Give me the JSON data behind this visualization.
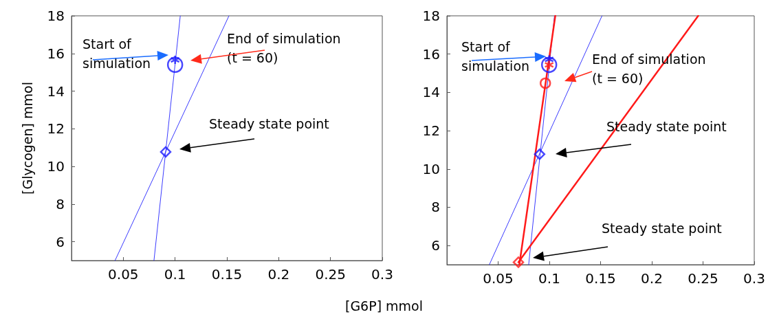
{
  "chart_data": [
    {
      "type": "line",
      "xlabel": "[G6P] mmol",
      "ylabel": "[Glycogen] mmol",
      "xlim": [
        0,
        0.3
      ],
      "ylim": [
        5,
        18
      ],
      "xticks": [
        0.05,
        0.1,
        0.15,
        0.2,
        0.25,
        0.3
      ],
      "yticks": [
        6,
        8,
        10,
        12,
        14,
        16,
        18
      ],
      "grid": false,
      "series": [
        {
          "color": "#3b3bff",
          "x": [
            0.0796,
            0.105
          ],
          "values": [
            5,
            18
          ]
        },
        {
          "color": "#3b3bff",
          "x": [
            0.042,
            0.152
          ],
          "values": [
            5,
            18
          ]
        },
        {
          "type": "scatter",
          "marker": "cross",
          "color": "#1a1aff",
          "x": [
            0.1
          ],
          "values": [
            15.66
          ]
        },
        {
          "type": "scatter",
          "marker": "circle",
          "color": "#1a1aff",
          "x": [
            0.1
          ],
          "values": [
            15.4
          ]
        },
        {
          "type": "scatter",
          "marker": "diamond",
          "color": "#1a1aff",
          "x": [
            0.0909
          ],
          "values": [
            10.77
          ]
        }
      ],
      "annotations": [
        "Start of\nsimulation",
        "End of simulation\n(t = 60)",
        "Steady state point"
      ]
    },
    {
      "type": "line",
      "xlim": [
        0,
        0.3
      ],
      "ylim": [
        5,
        18
      ],
      "xticks": [
        0.05,
        0.1,
        0.15,
        0.2,
        0.25,
        0.3
      ],
      "yticks": [
        6,
        8,
        10,
        12,
        14,
        16,
        18
      ],
      "grid": false,
      "series": [
        {
          "color": "#3b3bff",
          "x": [
            0.0798,
            0.105
          ],
          "values": [
            5,
            18
          ]
        },
        {
          "color": "#3b3bff",
          "x": [
            0.0414,
            0.1514
          ],
          "values": [
            5,
            18
          ]
        },
        {
          "color": "#ff1a1a",
          "x": [
            0.0707,
            0.1058
          ],
          "values": [
            5,
            18
          ]
        },
        {
          "color": "#ff1a1a",
          "x": [
            0.0698,
            0.2453
          ],
          "values": [
            5.13,
            18
          ]
        },
        {
          "type": "scatter",
          "marker": "cross",
          "color": "#1a1aff",
          "x": [
            0.0998
          ],
          "values": [
            15.72
          ]
        },
        {
          "type": "scatter",
          "marker": "circle",
          "color": "#1a1aff",
          "x": [
            0.0998
          ],
          "values": [
            15.44
          ]
        },
        {
          "type": "scatter",
          "marker": "cross",
          "color": "#ff1a1a",
          "x": [
            0.0998
          ],
          "values": [
            15.44
          ]
        },
        {
          "type": "scatter",
          "marker": "circle",
          "color": "#ff1a1a",
          "x": [
            0.0961
          ],
          "values": [
            14.48
          ]
        },
        {
          "type": "scatter",
          "marker": "diamond",
          "color": "#1a1aff",
          "x": [
            0.0905
          ],
          "values": [
            10.77
          ]
        },
        {
          "type": "scatter",
          "marker": "diamond",
          "color": "#ff1a1a",
          "x": [
            0.0698
          ],
          "values": [
            5.13
          ]
        }
      ],
      "annotations": [
        "Start of\nsimulation",
        "End of simulation\n(t = 60)",
        "Steady state point",
        "Steady state point"
      ]
    }
  ]
}
